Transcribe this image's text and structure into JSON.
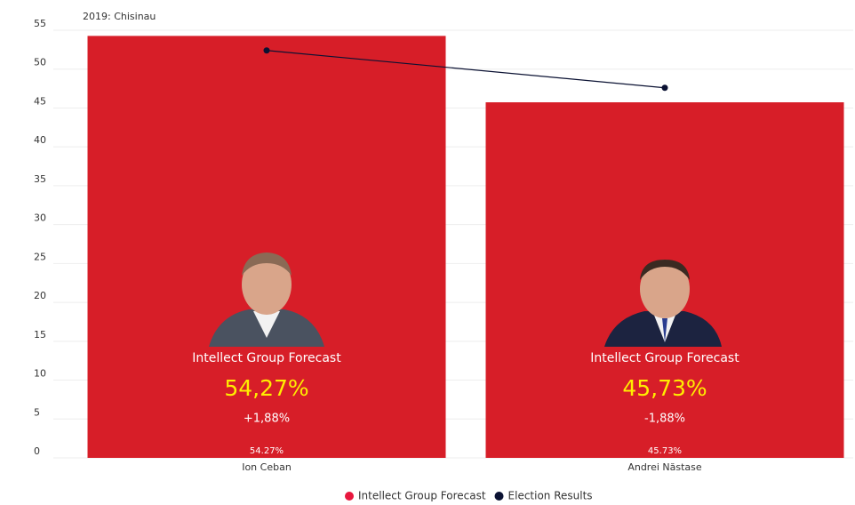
{
  "chart_data": {
    "type": "bar",
    "title": "2019: Chisinau",
    "categories": [
      "Ion Ceban",
      "Andrei Năstase"
    ],
    "series": [
      {
        "name": "Intellect Group Forecast",
        "type": "bar",
        "color": "#d71e28",
        "values": [
          54.27,
          45.73
        ],
        "value_labels": [
          "54.27%",
          "45.73%"
        ]
      },
      {
        "name": "Election Results",
        "type": "line",
        "color": "#0b1233",
        "values": [
          52.4,
          47.6
        ]
      }
    ],
    "annotations": [
      {
        "title": "Intellect Group Forecast",
        "value": "54,27%",
        "diff": "+1,88%"
      },
      {
        "title": "Intellect Group Forecast",
        "value": "45,73%",
        "diff": "-1,88%"
      }
    ],
    "ylim": [
      0,
      55
    ],
    "yticks": [
      0,
      5,
      10,
      15,
      20,
      25,
      30,
      35,
      40,
      45,
      50,
      55
    ],
    "grid": true
  }
}
